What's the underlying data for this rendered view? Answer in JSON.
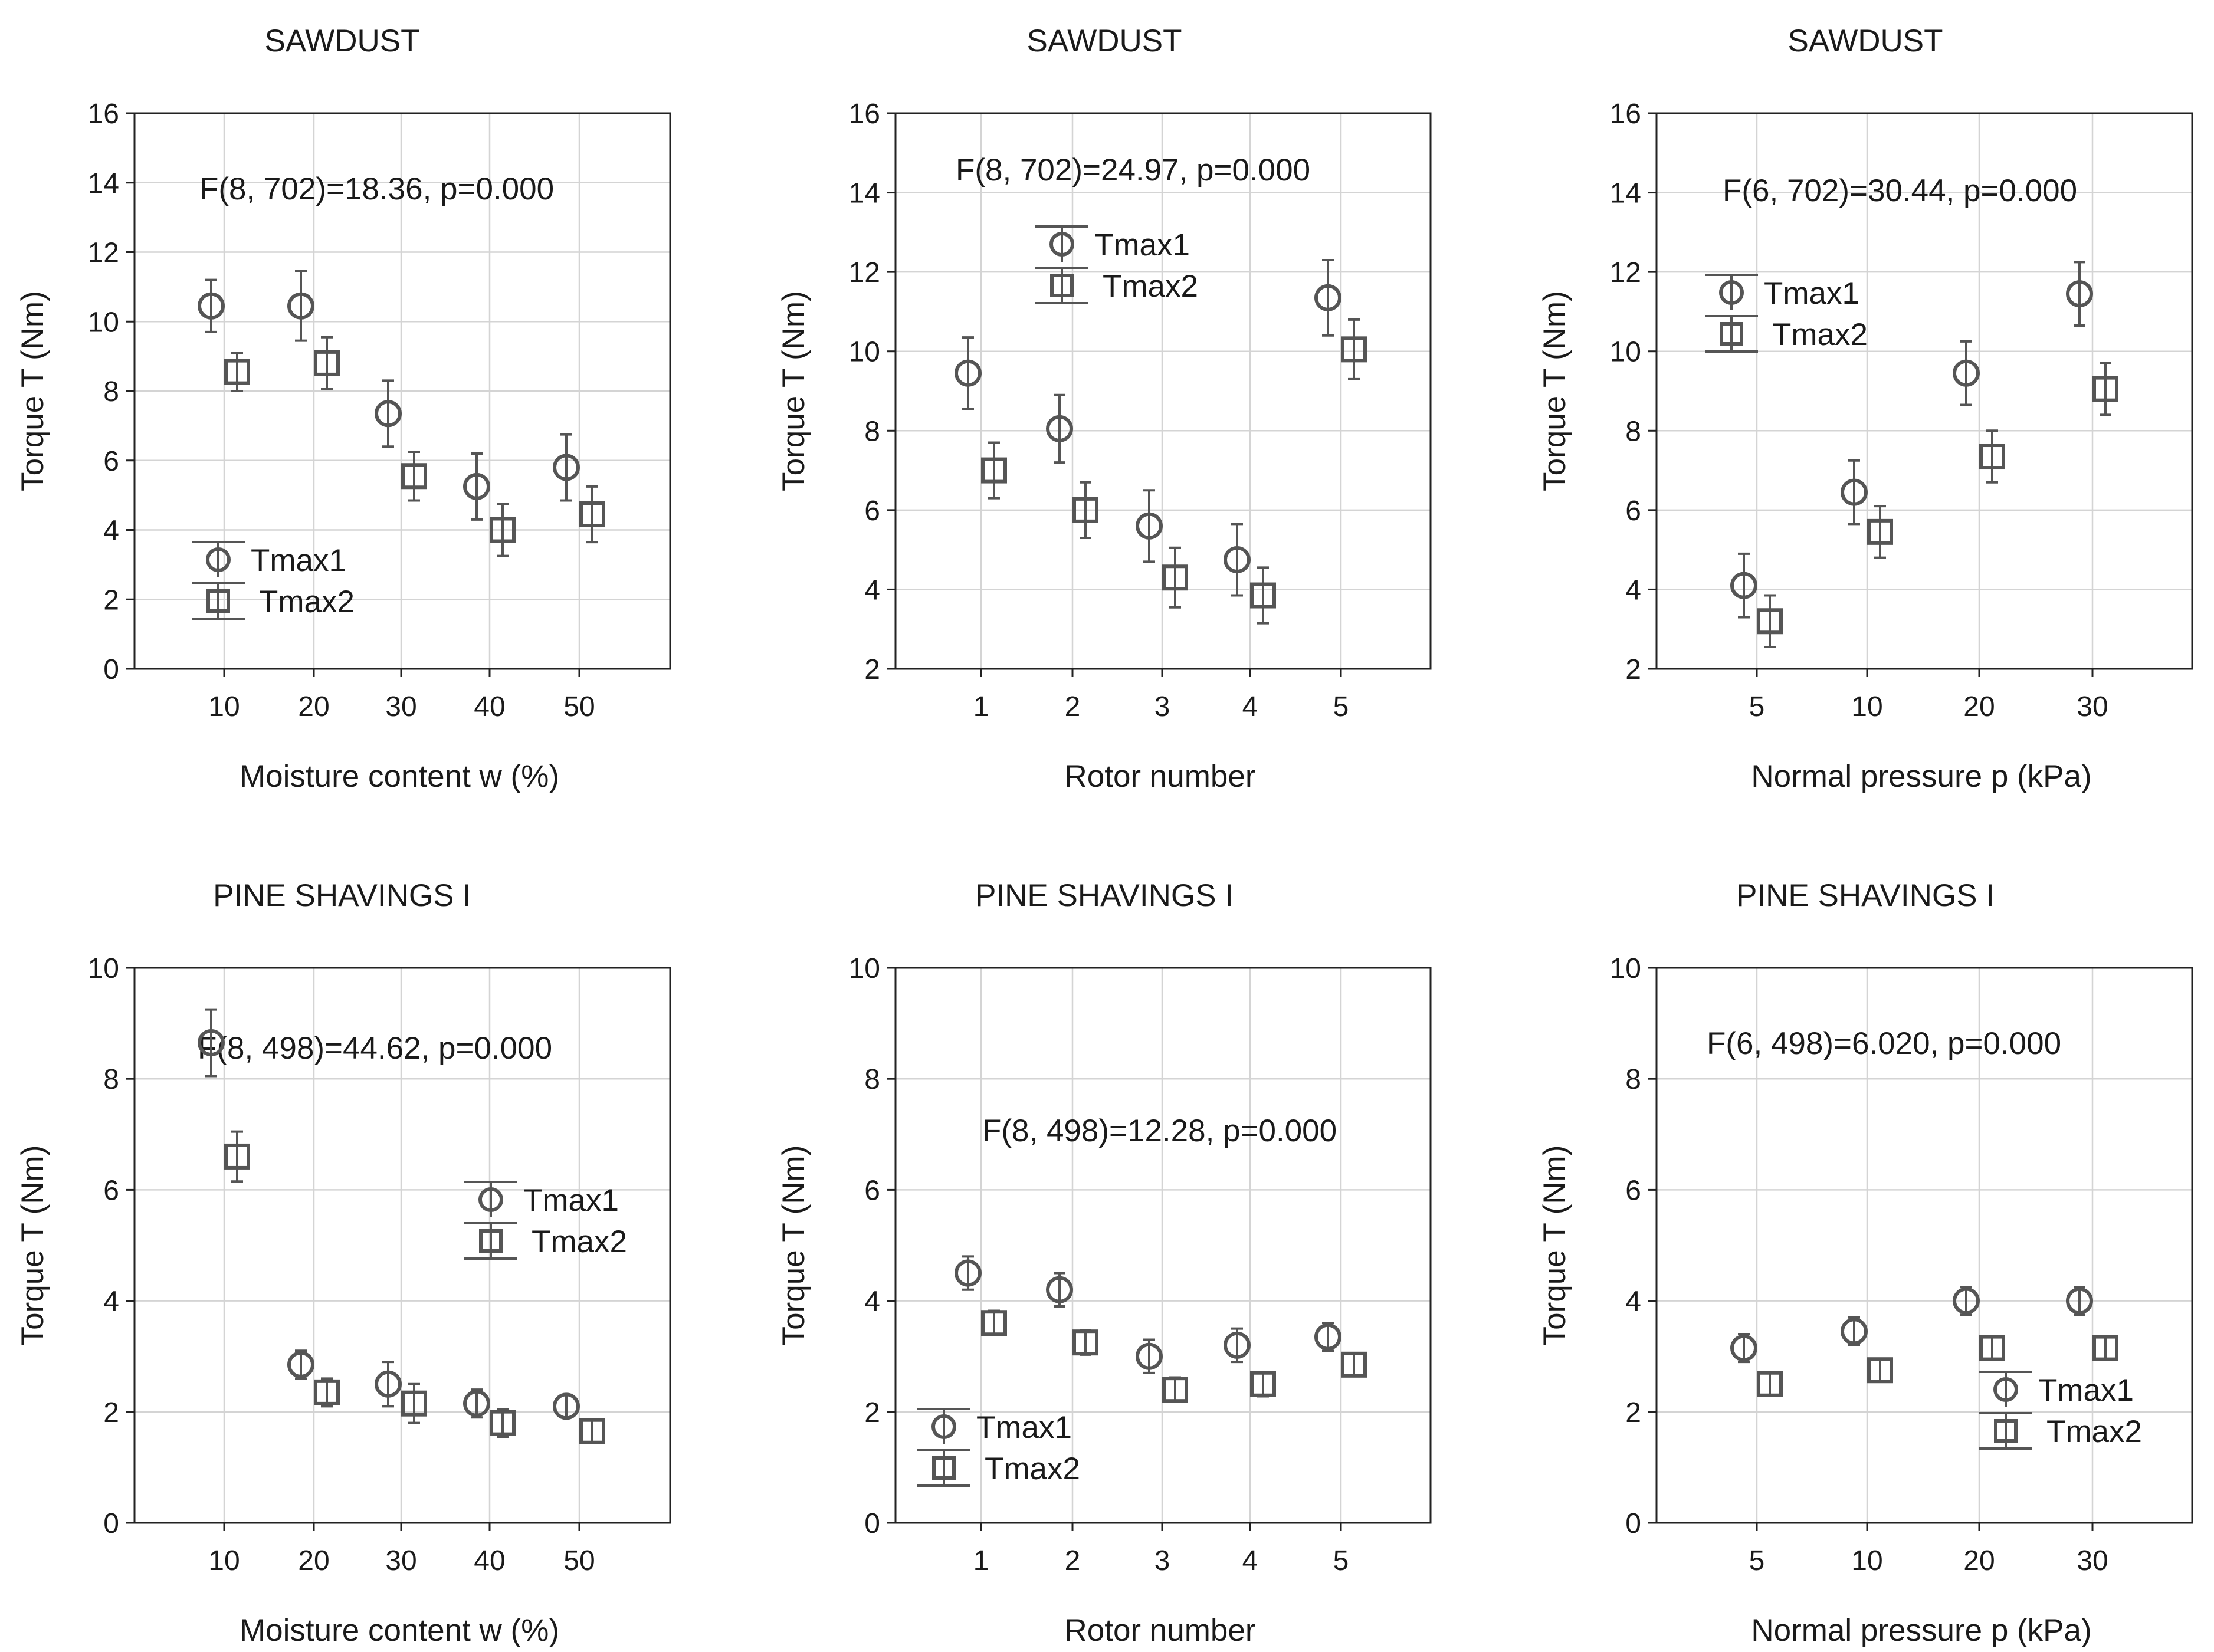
{
  "figure": {
    "subject": "Torque T measurements"
  },
  "chart_data": [
    {
      "type": "scatter",
      "title": "SAWDUST",
      "xlabel": "Moisture content w (%)",
      "ylabel": "Torque T (Nm)",
      "categories": [
        "10",
        "20",
        "30",
        "40",
        "50"
      ],
      "ylim": [
        0,
        16
      ],
      "yticks": [
        0,
        2,
        4,
        6,
        8,
        10,
        12,
        14,
        16
      ],
      "grid": true,
      "annotation": "F(8, 702)=18.36, p=0.000",
      "legend_position": "bottom-left",
      "series": [
        {
          "name": "Tmax1",
          "marker": "circle",
          "values": [
            10.45,
            10.45,
            7.35,
            5.25,
            5.8
          ],
          "err": [
            0.75,
            1.0,
            0.95,
            0.95,
            0.95
          ]
        },
        {
          "name": "Tmax2",
          "marker": "square",
          "values": [
            8.55,
            8.8,
            5.55,
            4.0,
            4.45
          ],
          "err": [
            0.55,
            0.75,
            0.7,
            0.75,
            0.8
          ]
        }
      ]
    },
    {
      "type": "scatter",
      "title": "SAWDUST",
      "xlabel": "Rotor number",
      "ylabel": "Torque T (Nm)",
      "categories": [
        "1",
        "2",
        "3",
        "4",
        "5"
      ],
      "ylim": [
        2,
        16
      ],
      "yticks": [
        2,
        4,
        6,
        8,
        10,
        12,
        14,
        16
      ],
      "grid": true,
      "annotation": "F(8, 702)=24.97, p=0.000",
      "legend_position": "top-left",
      "series": [
        {
          "name": "Tmax1",
          "marker": "circle",
          "values": [
            9.45,
            8.05,
            5.6,
            4.75,
            11.35
          ],
          "err": [
            0.9,
            0.85,
            0.9,
            0.9,
            0.95
          ]
        },
        {
          "name": "Tmax2",
          "marker": "square",
          "values": [
            7.0,
            6.0,
            4.3,
            3.85,
            10.05
          ],
          "err": [
            0.7,
            0.7,
            0.75,
            0.7,
            0.75
          ]
        }
      ]
    },
    {
      "type": "scatter",
      "title": "SAWDUST",
      "xlabel": "Normal pressure p (kPa)",
      "ylabel": "Torque T (Nm)",
      "categories": [
        "5",
        "10",
        "20",
        "30"
      ],
      "ylim": [
        2,
        16
      ],
      "yticks": [
        2,
        4,
        6,
        8,
        10,
        12,
        14,
        16
      ],
      "grid": true,
      "annotation": "F(6, 702)=30.44, p=0.000",
      "legend_position": "top-left",
      "series": [
        {
          "name": "Tmax1",
          "marker": "circle",
          "values": [
            4.1,
            6.45,
            9.45,
            11.45
          ],
          "err": [
            0.8,
            0.8,
            0.8,
            0.8
          ]
        },
        {
          "name": "Tmax2",
          "marker": "square",
          "values": [
            3.2,
            5.45,
            7.35,
            9.05
          ],
          "err": [
            0.65,
            0.65,
            0.65,
            0.65
          ]
        }
      ]
    },
    {
      "type": "scatter",
      "title": "PINE SHAVINGS I",
      "xlabel": "Moisture content w (%)",
      "ylabel": "Torque T (Nm)",
      "categories": [
        "10",
        "20",
        "30",
        "40",
        "50"
      ],
      "ylim": [
        0,
        10
      ],
      "yticks": [
        0,
        2,
        4,
        6,
        8,
        10
      ],
      "grid": true,
      "annotation": "F(8, 498)=44.62, p=0.000",
      "legend_position": "middle-right",
      "series": [
        {
          "name": "Tmax1",
          "marker": "circle",
          "values": [
            8.65,
            2.85,
            2.5,
            2.15,
            2.1
          ],
          "err": [
            0.6,
            0.25,
            0.4,
            0.25,
            0.2
          ]
        },
        {
          "name": "Tmax2",
          "marker": "square",
          "values": [
            6.6,
            2.35,
            2.15,
            1.8,
            1.65
          ],
          "err": [
            0.45,
            0.25,
            0.35,
            0.25,
            0.2
          ]
        }
      ]
    },
    {
      "type": "scatter",
      "title": "PINE SHAVINGS I",
      "xlabel": "Rotor number",
      "ylabel": "Torque T (Nm)",
      "categories": [
        "1",
        "2",
        "3",
        "4",
        "5"
      ],
      "ylim": [
        0,
        10
      ],
      "yticks": [
        0,
        2,
        4,
        6,
        8,
        10
      ],
      "grid": true,
      "annotation": "F(8, 498)=12.28, p=0.000",
      "legend_position": "bottom-left",
      "series": [
        {
          "name": "Tmax1",
          "marker": "circle",
          "values": [
            4.5,
            4.2,
            3.0,
            3.2,
            3.35
          ],
          "err": [
            0.3,
            0.3,
            0.3,
            0.3,
            0.25
          ]
        },
        {
          "name": "Tmax2",
          "marker": "square",
          "values": [
            3.6,
            3.25,
            2.4,
            2.5,
            2.85
          ],
          "err": [
            0.22,
            0.22,
            0.22,
            0.22,
            0.2
          ]
        }
      ]
    },
    {
      "type": "scatter",
      "title": "PINE SHAVINGS I",
      "xlabel": "Normal pressure p (kPa)",
      "ylabel": "Torque T (Nm)",
      "categories": [
        "5",
        "10",
        "20",
        "30"
      ],
      "ylim": [
        0,
        10
      ],
      "yticks": [
        0,
        2,
        4,
        6,
        8,
        10
      ],
      "grid": true,
      "annotation": "F(6, 498)=6.020, p=0.000",
      "legend_position": "bottom-right",
      "series": [
        {
          "name": "Tmax1",
          "marker": "circle",
          "values": [
            3.15,
            3.45,
            4.0,
            4.0
          ],
          "err": [
            0.25,
            0.25,
            0.25,
            0.25
          ]
        },
        {
          "name": "Tmax2",
          "marker": "square",
          "values": [
            2.5,
            2.75,
            3.15,
            3.15
          ],
          "err": [
            0.2,
            0.2,
            0.2,
            0.2
          ]
        }
      ]
    }
  ]
}
